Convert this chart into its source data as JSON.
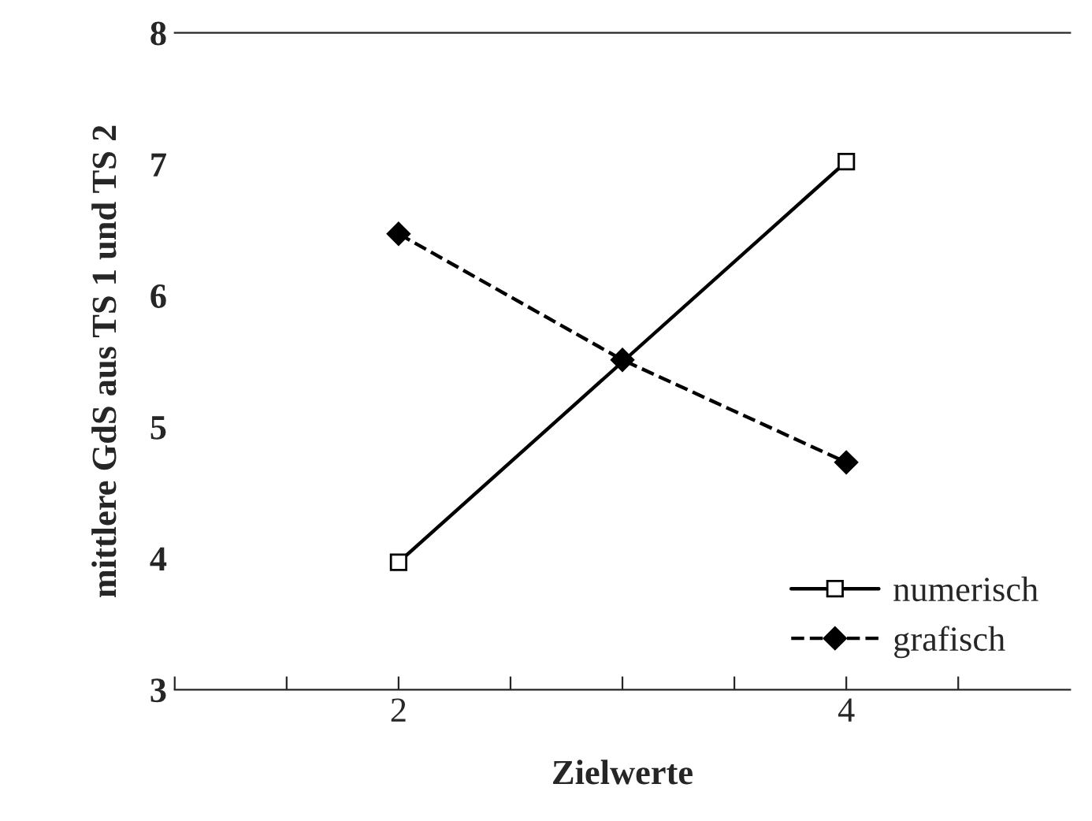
{
  "chart_data": {
    "type": "line",
    "xlabel": "Zielwerte",
    "ylabel": "mittlere GdS aus TS 1 und TS 2",
    "xlim": [
      1,
      5
    ],
    "xticks": [
      {
        "value": 1,
        "label": null
      },
      {
        "value": 1.5,
        "label": null
      },
      2,
      {
        "value": 2.5,
        "label": null
      },
      {
        "value": 3,
        "label": null
      },
      {
        "value": 3.5,
        "label": null
      },
      4,
      {
        "value": 4.5,
        "label": null
      }
    ],
    "ylim": [
      3,
      8
    ],
    "yticks": [
      3,
      4,
      5,
      6,
      7,
      8
    ],
    "grid": false,
    "legend": "bottom right",
    "series": [
      {
        "name": "numerisch",
        "color": "#000000",
        "x": [
          2,
          4
        ],
        "values": [
          3.97,
          7.02
        ],
        "marker": "square",
        "line_style": "solid"
      },
      {
        "name": "grafisch",
        "color": "#000000",
        "x": [
          2,
          3,
          4
        ],
        "values": [
          6.47,
          5.51,
          4.73
        ],
        "marker": "diamond",
        "line_style": "dashed"
      }
    ]
  }
}
